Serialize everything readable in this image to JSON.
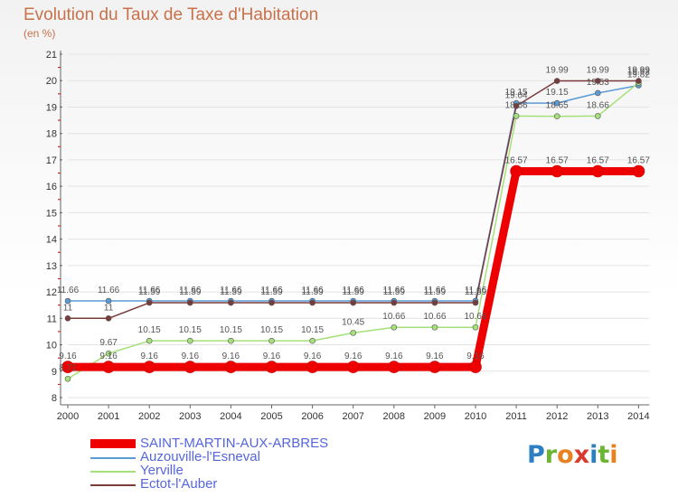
{
  "title": "Evolution du Taux de Taxe d'Habitation",
  "subtitle": "(en %)",
  "logo": {
    "text": "Proxiti",
    "colors": [
      "#2c7fc2",
      "#6bb532",
      "#e8811e",
      "#d93a2c",
      "#2c7fc2",
      "#6bb532",
      "#e8811e"
    ]
  },
  "chart_data": {
    "type": "line",
    "title": "Evolution du Taux de Taxe d'Habitation",
    "ylabel": "(en %)",
    "xlabel": "",
    "ylim": [
      8,
      21
    ],
    "yticks": [
      "8",
      "9",
      "10",
      "11",
      "12",
      "13",
      "14",
      "15",
      "16",
      "17",
      "18",
      "19",
      "20",
      "21"
    ],
    "categories": [
      "2000",
      "2001",
      "2002",
      "2003",
      "2004",
      "2005",
      "2006",
      "2007",
      "2008",
      "2009",
      "2010",
      "2011",
      "2012",
      "2013",
      "2014"
    ],
    "series": [
      {
        "name": "SAINT-MARTIN-AUX-ARBRES",
        "color": "#ee0000",
        "values": [
          9.16,
          9.16,
          9.16,
          9.16,
          9.16,
          9.16,
          9.16,
          9.16,
          9.16,
          9.16,
          9.16,
          16.57,
          16.57,
          16.57,
          16.57
        ],
        "labels": [
          "9.16",
          "9.16",
          "9.16",
          "9.16",
          "9.16",
          "9.16",
          "9.16",
          "9.16",
          "9.16",
          "9.16",
          "9.16",
          "16.57",
          "16.57",
          "16.57",
          "16.57"
        ]
      },
      {
        "name": "Auzouville-l'Esneval",
        "color": "#5b9bd5",
        "values": [
          11.66,
          11.66,
          11.66,
          11.66,
          11.66,
          11.66,
          11.66,
          11.66,
          11.66,
          11.66,
          11.66,
          19.15,
          19.15,
          19.53,
          19.82
        ],
        "labels": [
          "11.66",
          "11.66",
          "11.66",
          "11.66",
          "11.66",
          "11.66",
          "11.66",
          "11.66",
          "11.66",
          "11.66",
          "11.66",
          "19.15",
          "19.15",
          "19.53",
          "19.82"
        ]
      },
      {
        "name": "Yerville",
        "color": "#a6e07a",
        "values": [
          8.71,
          9.67,
          10.15,
          10.15,
          10.15,
          10.15,
          10.15,
          10.45,
          10.66,
          10.66,
          10.66,
          18.66,
          18.65,
          18.66,
          19.92
        ],
        "labels": [
          "8.71",
          "9.67",
          "10.15",
          "10.15",
          "10.15",
          "10.15",
          "10.15",
          "10.45",
          "10.66",
          "10.66",
          "10.66",
          "18.66",
          "18.65",
          "18.66",
          "19.92"
        ]
      },
      {
        "name": "Ectot-l'Auber",
        "color": "#7a3b3b",
        "values": [
          11,
          11,
          11.59,
          11.59,
          11.59,
          11.59,
          11.59,
          11.59,
          11.59,
          11.59,
          11.59,
          19.04,
          19.99,
          19.99,
          19.99
        ],
        "labels": [
          "11",
          "11",
          "11.59",
          "11.59",
          "11.59",
          "11.59",
          "11.59",
          "11.59",
          "11.59",
          "11.59",
          "11.59",
          "19.04",
          "19.99",
          "19.99",
          "19.99"
        ]
      }
    ]
  }
}
